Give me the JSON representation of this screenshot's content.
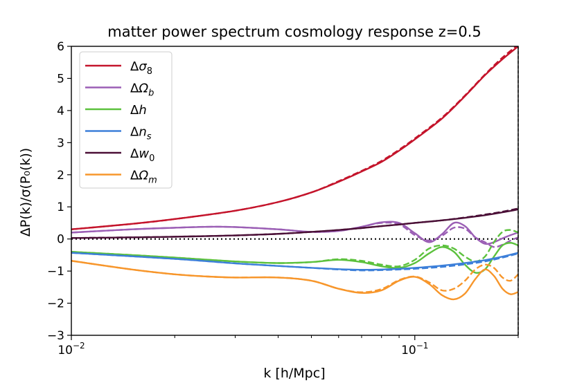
{
  "chart_data": {
    "type": "line",
    "title": "matter power spectrum cosmology response z=0.5",
    "xlabel": "k [h/Mpc]",
    "ylabel": "ΔP(k)/σ(P₀(k))",
    "xscale": "log",
    "xlim": [
      0.01,
      0.2
    ],
    "ylim": [
      -3,
      6
    ],
    "yticks": [
      -3,
      -2,
      -1,
      0,
      1,
      2,
      3,
      4,
      5,
      6
    ],
    "ytick_labels": [
      "−3",
      "−2",
      "−1",
      "0",
      "1",
      "2",
      "3",
      "4",
      "5",
      "6"
    ],
    "xticks": [
      0.01,
      0.1
    ],
    "xtick_labels": [
      {
        "base": "10",
        "exp": "−2"
      },
      {
        "base": "10",
        "exp": "−1"
      }
    ],
    "zero_line": {
      "y": 0,
      "style": "dotted",
      "color": "#000000"
    },
    "right_edge_dashed": true,
    "legend": {
      "position": "top-left",
      "entries": [
        {
          "sym": "Δ",
          "main": "σ",
          "sub": "8",
          "italic_sub": false,
          "color": "#c4142b"
        },
        {
          "sym": "Δ",
          "main": "Ω",
          "sub": "b",
          "italic_sub": true,
          "color": "#9b5fb5"
        },
        {
          "sym": "Δ",
          "main": "h",
          "sub": "",
          "italic_sub": false,
          "color": "#5cc13d"
        },
        {
          "sym": "Δ",
          "main": "n",
          "sub": "s",
          "italic_sub": true,
          "color": "#3c7fd9"
        },
        {
          "sym": "Δ",
          "main": "w",
          "sub": "0",
          "italic_sub": false,
          "color": "#4a0f36"
        },
        {
          "sym": "Δ",
          "main": "Ω",
          "sub": "m",
          "italic_sub": true,
          "color": "#f7962b"
        }
      ]
    },
    "series": [
      {
        "name": "Δσ8",
        "color": "#c4142b",
        "x": [
          0.01,
          0.015,
          0.02,
          0.03,
          0.04,
          0.05,
          0.06,
          0.07,
          0.08,
          0.09,
          0.1,
          0.12,
          0.14,
          0.16,
          0.18,
          0.2
        ],
        "solid": [
          0.3,
          0.47,
          0.62,
          0.88,
          1.15,
          1.45,
          1.78,
          2.1,
          2.4,
          2.75,
          3.1,
          3.75,
          4.45,
          5.1,
          5.6,
          6.0
        ],
        "dashed": [
          0.3,
          0.47,
          0.62,
          0.88,
          1.15,
          1.45,
          1.8,
          2.12,
          2.43,
          2.78,
          3.13,
          3.78,
          4.47,
          5.12,
          5.65,
          6.05
        ]
      },
      {
        "name": "ΔΩb",
        "color": "#9b5fb5",
        "x": [
          0.01,
          0.015,
          0.02,
          0.025,
          0.03,
          0.04,
          0.05,
          0.06,
          0.07,
          0.08,
          0.09,
          0.1,
          0.11,
          0.12,
          0.13,
          0.14,
          0.15,
          0.16,
          0.17,
          0.18,
          0.19,
          0.2
        ],
        "solid": [
          0.2,
          0.3,
          0.35,
          0.38,
          0.37,
          0.3,
          0.22,
          0.25,
          0.38,
          0.52,
          0.5,
          0.18,
          -0.1,
          0.15,
          0.5,
          0.4,
          0.05,
          -0.15,
          -0.1,
          0.02,
          0.12,
          0.2
        ],
        "dashed": [
          0.2,
          0.3,
          0.35,
          0.38,
          0.37,
          0.3,
          0.22,
          0.25,
          0.38,
          0.5,
          0.46,
          0.12,
          -0.05,
          0.1,
          0.35,
          0.32,
          0.05,
          -0.1,
          -0.25,
          -0.18,
          -0.05,
          0.05
        ]
      },
      {
        "name": "Δh",
        "color": "#5cc13d",
        "x": [
          0.01,
          0.015,
          0.02,
          0.03,
          0.04,
          0.05,
          0.06,
          0.07,
          0.08,
          0.09,
          0.1,
          0.11,
          0.12,
          0.13,
          0.14,
          0.15,
          0.16,
          0.17,
          0.18,
          0.19,
          0.2
        ],
        "solid": [
          -0.4,
          -0.5,
          -0.58,
          -0.7,
          -0.75,
          -0.72,
          -0.65,
          -0.72,
          -0.85,
          -0.9,
          -0.75,
          -0.45,
          -0.25,
          -0.4,
          -0.8,
          -1.05,
          -0.95,
          -0.55,
          -0.2,
          -0.12,
          -0.2
        ],
        "dashed": [
          -0.4,
          -0.5,
          -0.58,
          -0.7,
          -0.75,
          -0.72,
          -0.63,
          -0.68,
          -0.8,
          -0.85,
          -0.65,
          -0.3,
          -0.2,
          -0.3,
          -0.55,
          -0.7,
          -0.55,
          -0.1,
          0.22,
          0.28,
          0.2
        ]
      },
      {
        "name": "Δns",
        "color": "#3c7fd9",
        "x": [
          0.01,
          0.02,
          0.03,
          0.04,
          0.05,
          0.06,
          0.07,
          0.08,
          0.09,
          0.1,
          0.12,
          0.14,
          0.16,
          0.18,
          0.2
        ],
        "solid": [
          -0.43,
          -0.62,
          -0.76,
          -0.84,
          -0.9,
          -0.94,
          -0.96,
          -0.95,
          -0.93,
          -0.9,
          -0.83,
          -0.75,
          -0.66,
          -0.55,
          -0.43
        ],
        "dashed": [
          -0.43,
          -0.62,
          -0.76,
          -0.84,
          -0.9,
          -0.95,
          -0.98,
          -0.97,
          -0.95,
          -0.93,
          -0.87,
          -0.79,
          -0.7,
          -0.58,
          -0.45
        ]
      },
      {
        "name": "Δw0",
        "color": "#4a0f36",
        "x": [
          0.01,
          0.015,
          0.02,
          0.03,
          0.04,
          0.05,
          0.06,
          0.07,
          0.08,
          0.09,
          0.1,
          0.12,
          0.14,
          0.16,
          0.18,
          0.2
        ],
        "solid": [
          0.03,
          0.05,
          0.07,
          0.11,
          0.16,
          0.22,
          0.28,
          0.34,
          0.4,
          0.45,
          0.5,
          0.58,
          0.66,
          0.74,
          0.83,
          0.92
        ],
        "dashed": [
          0.03,
          0.05,
          0.07,
          0.11,
          0.16,
          0.22,
          0.28,
          0.34,
          0.4,
          0.45,
          0.5,
          0.58,
          0.67,
          0.76,
          0.85,
          0.95
        ]
      },
      {
        "name": "ΔΩm",
        "color": "#f7962b",
        "x": [
          0.01,
          0.015,
          0.02,
          0.025,
          0.03,
          0.04,
          0.05,
          0.06,
          0.07,
          0.08,
          0.09,
          0.1,
          0.11,
          0.12,
          0.13,
          0.14,
          0.15,
          0.16,
          0.17,
          0.18,
          0.19,
          0.2
        ],
        "solid": [
          -0.68,
          -0.95,
          -1.1,
          -1.17,
          -1.2,
          -1.2,
          -1.3,
          -1.55,
          -1.68,
          -1.6,
          -1.3,
          -1.18,
          -1.4,
          -1.75,
          -1.88,
          -1.7,
          -1.25,
          -0.95,
          -1.15,
          -1.55,
          -1.72,
          -1.65
        ],
        "dashed": [
          -0.68,
          -0.95,
          -1.1,
          -1.17,
          -1.2,
          -1.2,
          -1.3,
          -1.55,
          -1.66,
          -1.56,
          -1.28,
          -1.17,
          -1.35,
          -1.6,
          -1.55,
          -1.3,
          -0.95,
          -0.8,
          -0.9,
          -1.2,
          -1.3,
          -1.1
        ]
      }
    ]
  }
}
